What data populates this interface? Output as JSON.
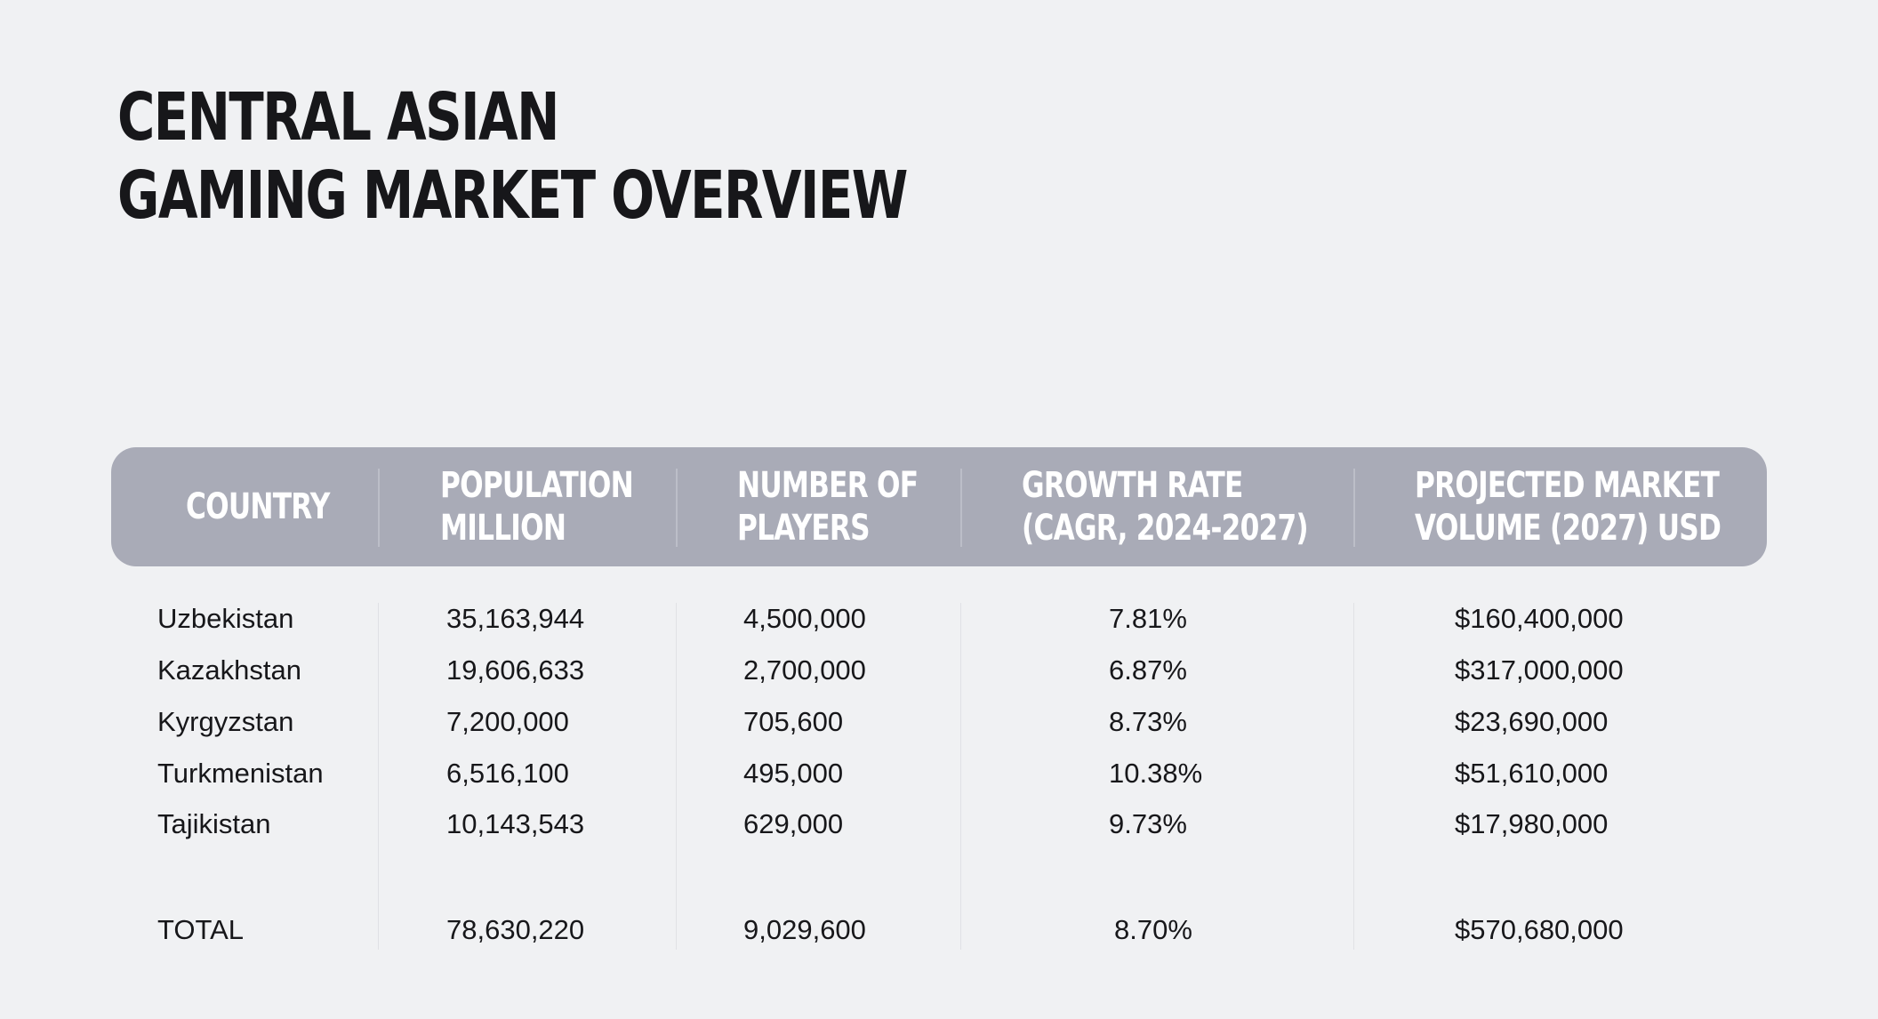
{
  "title": {
    "line1": "CENTRAL ASIAN",
    "line2": "GAMING MARKET OVERVIEW"
  },
  "table": {
    "headers": [
      {
        "line1": "COUNTRY",
        "line2": ""
      },
      {
        "line1": "POPULATION",
        "line2": "MILLION"
      },
      {
        "line1": "NUMBER OF",
        "line2": "PLAYERS"
      },
      {
        "line1": "GROWTH RATE",
        "line2": "(CAGR, 2024-2027)"
      },
      {
        "line1": "PROJECTED MARKET",
        "line2": "VOLUME (2027) USD"
      }
    ],
    "rows": [
      {
        "country": "Uzbekistan",
        "population": "35,163,944",
        "players": "4,500,000",
        "growth": "7.81%",
        "volume": "$160,400,000"
      },
      {
        "country": "Kazakhstan",
        "population": "19,606,633",
        "players": "2,700,000",
        "growth": "6.87%",
        "volume": "$317,000,000"
      },
      {
        "country": "Kyrgyzstan",
        "population": "7,200,000",
        "players": "705,600",
        "growth": "8.73%",
        "volume": "$23,690,000"
      },
      {
        "country": "Turkmenistan",
        "population": "6,516,100",
        "players": "495,000",
        "growth": "10.38%",
        "volume": "$51,610,000"
      },
      {
        "country": "Tajikistan",
        "population": "10,143,543",
        "players": "629,000",
        "growth": "9.73%",
        "volume": "$17,980,000"
      }
    ],
    "total": {
      "country": "TOTAL",
      "population": "78,630,220",
      "players": "9,029,600",
      "growth": "8.70%",
      "volume": "$570,680,000"
    }
  }
}
